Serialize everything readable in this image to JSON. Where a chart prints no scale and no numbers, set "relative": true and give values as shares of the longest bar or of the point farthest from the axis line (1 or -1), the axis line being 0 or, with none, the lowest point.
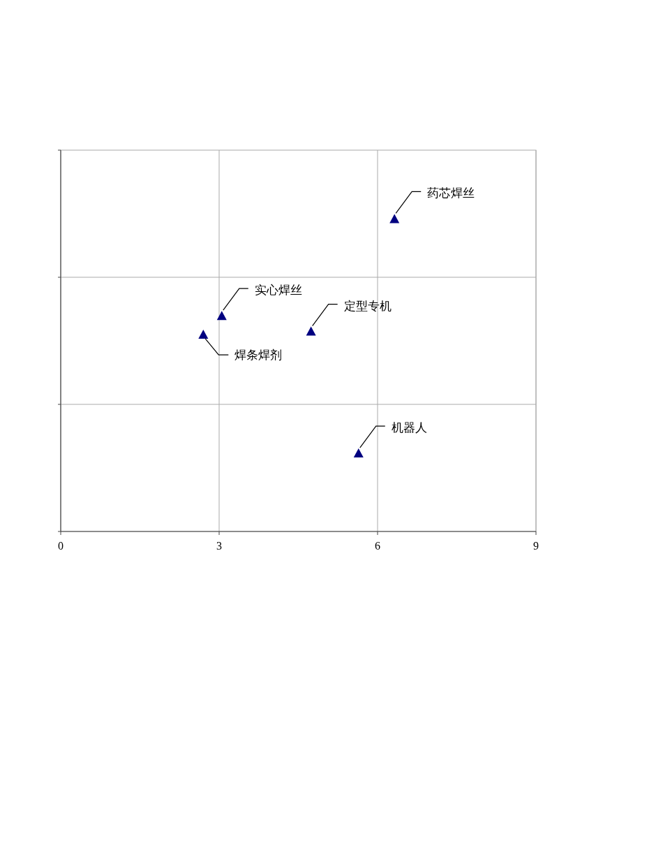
{
  "chart_data": {
    "type": "scatter",
    "relative": true,
    "xlim": [
      0,
      9
    ],
    "xticks": [
      0,
      3,
      6,
      9
    ],
    "grid": true,
    "tick_labels": "x",
    "marker": "triangle",
    "x": [
      6.32,
      3.05,
      4.74,
      2.7,
      5.64
    ],
    "series": [
      {
        "color": "#000080",
        "values": [
          1,
          0.69,
          0.64,
          0.63,
          0.25
        ]
      }
    ],
    "annotations": [
      {
        "text": "药芯焊丝",
        "x": 6.32,
        "y": 1
      },
      {
        "text": "实心焊丝",
        "x": 3.05,
        "y": 0.69
      },
      {
        "text": "定型专机",
        "x": 4.74,
        "y": 0.64
      },
      {
        "text": "焊条焊剂",
        "x": 2.7,
        "y": 0.63
      },
      {
        "text": "机器人",
        "x": 5.64,
        "y": 0.25
      }
    ]
  }
}
